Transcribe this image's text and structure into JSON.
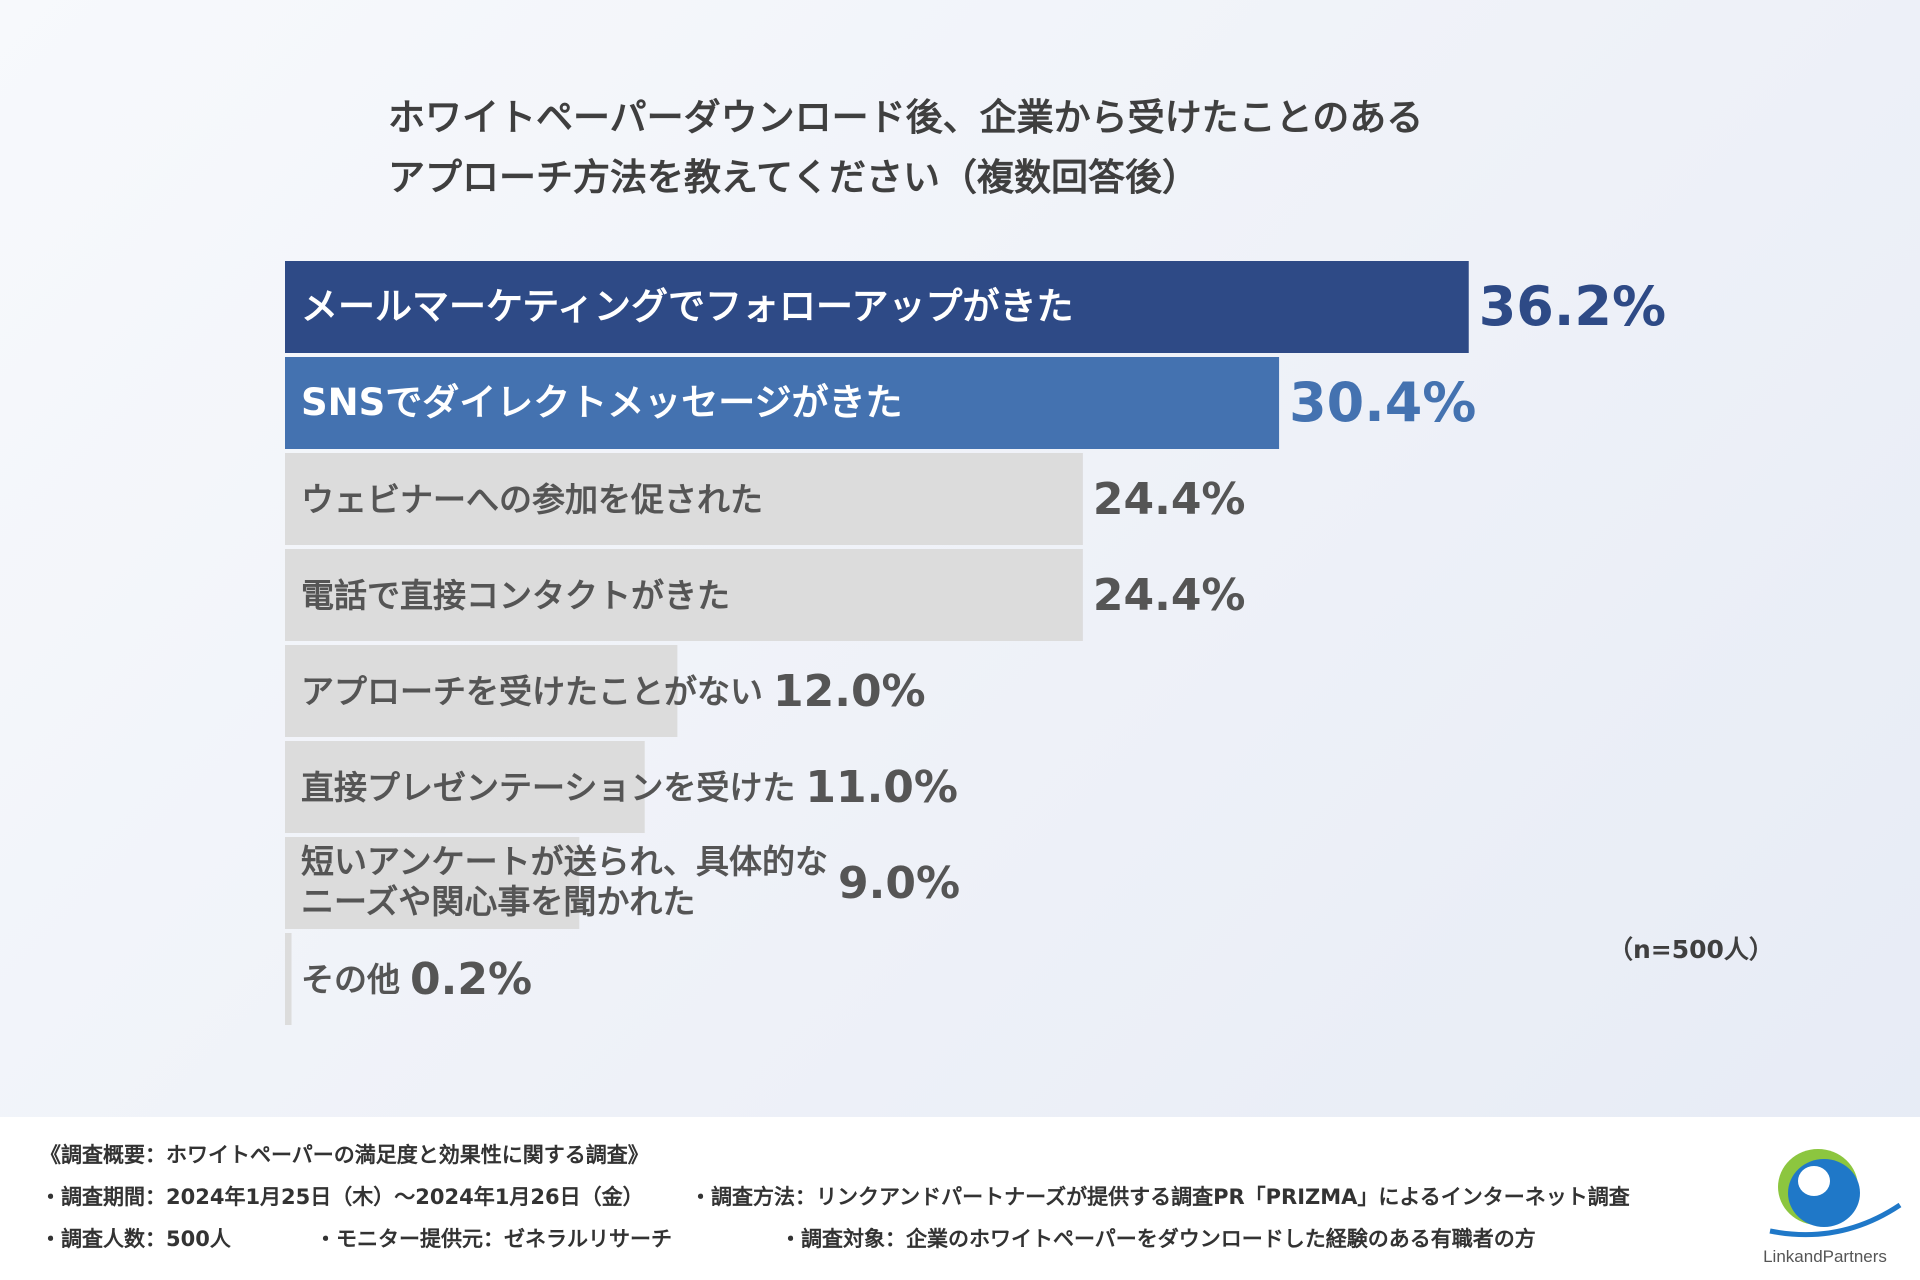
{
  "title_lines": [
    "ホワイトペーパーダウンロード後、企業から受けたことのある",
    "アプローチ方法を教えてください（複数回答後）"
  ],
  "chart_data": {
    "type": "bar",
    "orientation": "horizontal",
    "categories": [
      "メールマーケティングでフォローアップがきた",
      "SNSでダイレクトメッセージがきた",
      "ウェビナーへの参加を促された",
      "電話で直接コンタクトがきた",
      "アプローチを受けたことがない",
      "直接プレゼンテーションを受けた",
      "短いアンケートが送られ、具体的なニーズや関心事を聞かれた",
      "その他"
    ],
    "label_lines": [
      [
        "メールマーケティングでフォローアップがきた"
      ],
      [
        "SNSでダイレクトメッセージがきた"
      ],
      [
        "ウェビナーへの参加を促された"
      ],
      [
        "電話で直接コンタクトがきた"
      ],
      [
        "アプローチを受けたことがない"
      ],
      [
        "直接プレゼンテーションを受けた"
      ],
      [
        "短いアンケートが送られ、具体的な",
        "ニーズや関心事を聞かれた"
      ],
      [
        "その他"
      ]
    ],
    "values": [
      36.2,
      30.4,
      24.4,
      24.4,
      12.0,
      11.0,
      9.0,
      0.2
    ],
    "value_labels": [
      "36.2%",
      "30.4%",
      "24.4%",
      "24.4%",
      "12.0%",
      "11.0%",
      "9.0%",
      "0.2%"
    ],
    "bar_colors": [
      "#2e4a86",
      "#4472b0",
      "#dcdcdc",
      "#dcdcdc",
      "#dcdcdc",
      "#dcdcdc",
      "#dcdcdc",
      "#dcdcdc"
    ],
    "label_colors": [
      "#ffffff",
      "#ffffff",
      "#555555",
      "#555555",
      "#555555",
      "#555555",
      "#555555",
      "#555555"
    ],
    "value_colors": [
      "#2e4a86",
      "#4472b0",
      "#555555",
      "#555555",
      "#555555",
      "#555555",
      "#555555",
      "#555555"
    ],
    "grid": false,
    "legend": "none"
  },
  "sample_note": "（n=500人）",
  "footer": {
    "overview": "《調査概要：ホワイトペーパーの満足度と効果性に関する調査》",
    "period": "・調査期間：2024年1月25日（木）〜2024年1月26日（金）",
    "method": "・調査方法：リンクアンドパートナーズが提供する調査PR「PRIZMA」によるインターネット調査",
    "count": "・調査人数：500人",
    "monitor": "・モニター提供元：ゼネラルリサーチ",
    "target": "・調査対象：企業のホワイトペーパーをダウンロードした経験のある有職者の方"
  },
  "logo": {
    "text": "LinkandPartners",
    "colors": {
      "green": "#8cc63f",
      "blue": "#1f78c8"
    }
  }
}
